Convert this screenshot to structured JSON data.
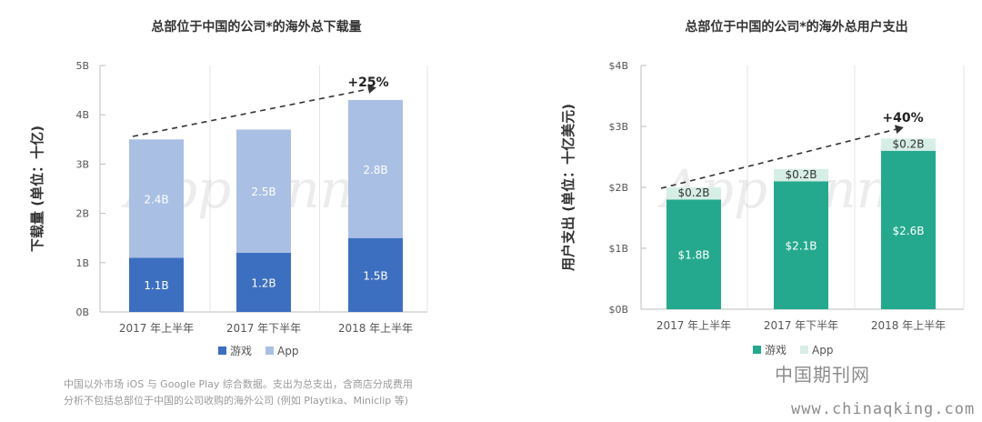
{
  "colors": {
    "games_blue": "#3d6fc0",
    "app_blue": "#a9bfe3",
    "games_teal": "#25a98e",
    "app_teal": "#d6eee6",
    "axis": "#bdbdbd",
    "text": "#555555",
    "title": "#333333"
  },
  "charts": {
    "downloads": {
      "title": "总部位于中国的公司*的海外总下载量",
      "ylabel": "下载量 (单位：十亿)",
      "growth": "+25%",
      "legend": {
        "games": "游戏",
        "app": "App"
      }
    },
    "spend": {
      "title": "总部位于中国的公司*的海外总用户支出",
      "ylabel": "用户支出 (单位：十亿美元)",
      "growth": "+40%",
      "legend": {
        "games": "游戏",
        "app": "App"
      }
    }
  },
  "chart_data": [
    {
      "type": "bar",
      "stacked": true,
      "title": "总部位于中国的公司*的海外总下载量",
      "ylabel": "下载量 (单位：十亿)",
      "categories": [
        "2017 年上半年",
        "2017 年下半年",
        "2018 年上半年"
      ],
      "yticks": [
        "0B",
        "1B",
        "2B",
        "3B",
        "4B",
        "5B"
      ],
      "ylim": [
        0,
        5
      ],
      "series": [
        {
          "name": "游戏",
          "values": [
            1.1,
            1.2,
            1.5
          ],
          "labels": [
            "1.1B",
            "1.2B",
            "1.5B"
          ]
        },
        {
          "name": "App",
          "values": [
            2.4,
            2.5,
            2.8
          ],
          "labels": [
            "2.4B",
            "2.5B",
            "2.8B"
          ]
        }
      ],
      "annotation": "+25%",
      "legend": "bottom"
    },
    {
      "type": "bar",
      "stacked": true,
      "title": "总部位于中国的公司*的海外总用户支出",
      "ylabel": "用户支出 (单位：十亿美元)",
      "categories": [
        "2017 年上半年",
        "2017 年下半年",
        "2018 年上半年"
      ],
      "yticks": [
        "$0B",
        "$1B",
        "$2B",
        "$3B",
        "$4B"
      ],
      "ylim": [
        0,
        4
      ],
      "series": [
        {
          "name": "游戏",
          "values": [
            1.8,
            2.1,
            2.6
          ],
          "labels": [
            "$1.8B",
            "$2.1B",
            "$2.6B"
          ]
        },
        {
          "name": "App",
          "values": [
            0.2,
            0.2,
            0.2
          ],
          "labels": [
            "$0.2B",
            "$0.2B",
            "$0.2B"
          ]
        }
      ],
      "annotation": "+40%",
      "legend": "bottom"
    }
  ],
  "footnote": {
    "line1": "中国以外市场 iOS 与 Google Play 综合数据。支出为总支出，含商店分成费用",
    "line2": "分析不包括总部位于中国的公司收购的海外公司 (例如 Playtika、Miniclip 等)"
  },
  "watermark": {
    "center": "App Annie",
    "site_name": "中国期刊网",
    "site_url": "www.chinaqking.com"
  }
}
